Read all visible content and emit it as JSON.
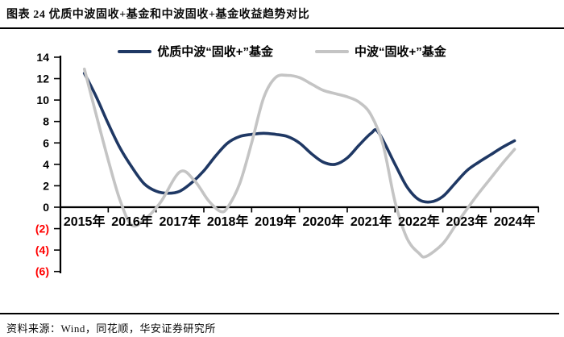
{
  "header": {
    "title": "图表 24 优质中波固收+基金和中波固收+基金收益趋势对比"
  },
  "footer": {
    "source": "资料来源：Wind，同花顺，华安证券研究所"
  },
  "palette": {
    "navy": "#1F3864",
    "gray": "#C4C4C4",
    "negative_red": "#FF0000",
    "axis_black": "#000000"
  },
  "chart_data": {
    "type": "line",
    "title": "优质中波固收+基金和中波固收+基金收益趋势对比",
    "xlabel": "",
    "ylabel": "",
    "x_labels": [
      "2015年",
      "2016年",
      "2017年",
      "2018年",
      "2019年",
      "2020年",
      "2021年",
      "2022年",
      "2023年",
      "2024年"
    ],
    "y_ticks": [
      14,
      12,
      10,
      8,
      6,
      4,
      2,
      0,
      -2,
      -4,
      -6
    ],
    "ylim": [
      -6,
      14
    ],
    "xlim_years": [
      2015,
      2025
    ],
    "grid": false,
    "legend_position": "top",
    "negative_label_style": "red-parentheses",
    "series": [
      {
        "name": "优质中波“固收+”基金",
        "color": "#1F3864",
        "x": [
          2015.0,
          2015.25,
          2015.5,
          2015.75,
          2016.0,
          2016.25,
          2016.5,
          2016.75,
          2017.0,
          2017.25,
          2017.5,
          2017.75,
          2018.0,
          2018.25,
          2018.5,
          2018.75,
          2019.0,
          2019.25,
          2019.5,
          2019.75,
          2020.0,
          2020.25,
          2020.5,
          2020.75,
          2021.0,
          2021.15,
          2021.5,
          2021.75,
          2022.0,
          2022.25,
          2022.5,
          2022.75,
          2023.0,
          2023.25,
          2023.5,
          2023.75,
          2024.0
        ],
        "values": [
          12.5,
          10.3,
          7.8,
          5.5,
          3.7,
          2.2,
          1.5,
          1.3,
          1.5,
          2.3,
          3.4,
          4.8,
          6.0,
          6.6,
          6.8,
          6.9,
          6.8,
          6.6,
          6.0,
          5.0,
          4.2,
          4.0,
          4.6,
          5.8,
          6.9,
          7.0,
          4.0,
          1.9,
          0.7,
          0.5,
          1.0,
          2.2,
          3.4,
          4.2,
          4.9,
          5.6,
          6.2
        ]
      },
      {
        "name": "中波“固收+”基金",
        "color": "#C4C4C4",
        "x": [
          2015.0,
          2015.25,
          2015.5,
          2015.75,
          2016.0,
          2016.3,
          2016.6,
          2017.0,
          2017.3,
          2017.6,
          2017.85,
          2018.0,
          2018.25,
          2018.5,
          2018.75,
          2019.0,
          2019.25,
          2019.5,
          2019.75,
          2020.0,
          2020.25,
          2020.5,
          2020.75,
          2021.0,
          2021.25,
          2021.5,
          2021.75,
          2022.0,
          2022.15,
          2022.5,
          2022.75,
          2023.0,
          2023.25,
          2023.5,
          2023.75,
          2024.0
        ],
        "values": [
          12.9,
          8.6,
          4.4,
          0.6,
          -1.7,
          -1.0,
          0.5,
          3.3,
          2.5,
          0.6,
          -0.4,
          0.0,
          2.2,
          6.0,
          10.2,
          12.1,
          12.3,
          12.1,
          11.5,
          10.9,
          10.6,
          10.3,
          9.8,
          8.6,
          5.8,
          0.5,
          -2.9,
          -4.3,
          -4.6,
          -3.4,
          -1.8,
          -0.2,
          1.3,
          2.7,
          4.1,
          5.4
        ]
      }
    ]
  }
}
